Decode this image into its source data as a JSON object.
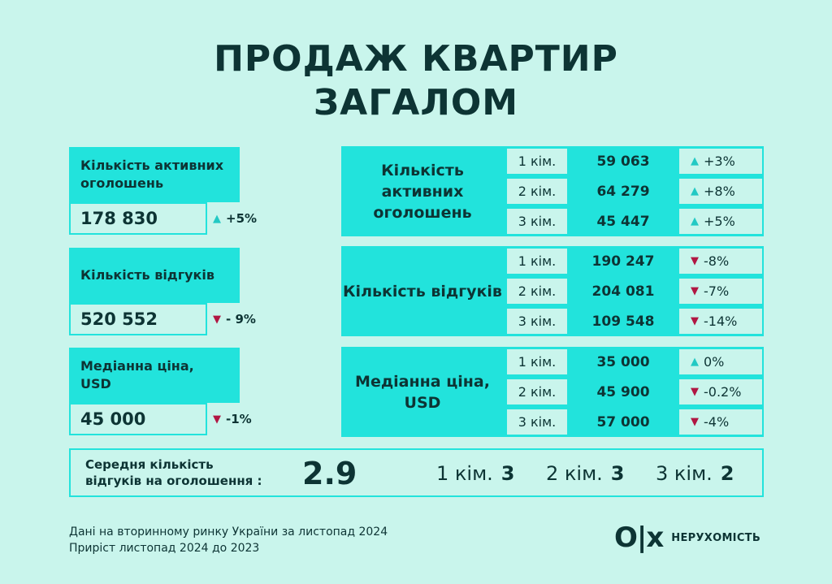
{
  "title": {
    "line1": "ПРОДАЖ КВАРТИР",
    "line2": "ЗАГАЛОМ"
  },
  "left": [
    {
      "label": "Кількість активних оголошень",
      "value": "178 830",
      "change": "+5%",
      "dir": "up"
    },
    {
      "label": "Кількість відгуків",
      "value": "520 552",
      "change": "- 9%",
      "dir": "down"
    },
    {
      "label": "Медіанна ціна, USD",
      "value": "45 000",
      "change": "-1%",
      "dir": "down"
    }
  ],
  "right": [
    {
      "label": "Кількість активних оголошень",
      "rows": [
        {
          "room": "1 кім.",
          "value": "59 063",
          "change": "+3%",
          "dir": "up"
        },
        {
          "room": "2 кім.",
          "value": "64 279",
          "change": "+8%",
          "dir": "up"
        },
        {
          "room": "3 кім.",
          "value": "45 447",
          "change": "+5%",
          "dir": "up"
        }
      ]
    },
    {
      "label": "Кількість відгуків",
      "rows": [
        {
          "room": "1 кім.",
          "value": "190 247",
          "change": "-8%",
          "dir": "down"
        },
        {
          "room": "2 кім.",
          "value": "204 081",
          "change": "-7%",
          "dir": "down"
        },
        {
          "room": "3 кім.",
          "value": "109 548",
          "change": "-14%",
          "dir": "down"
        }
      ]
    },
    {
      "label": "Медіанна ціна, USD",
      "rows": [
        {
          "room": "1 кім.",
          "value": "35 000",
          "change": "0%",
          "dir": "up"
        },
        {
          "room": "2 кім.",
          "value": "45 900",
          "change": "-0.2%",
          "dir": "down"
        },
        {
          "room": "3 кім.",
          "value": "57 000",
          "change": "-4%",
          "dir": "down"
        }
      ]
    }
  ],
  "average": {
    "label_line1": "Середня кількість",
    "label_line2": "відгуків на оголошення :",
    "value": "2.9",
    "rooms": [
      {
        "room": "1 кім.",
        "value": "3"
      },
      {
        "room": "2 кім.",
        "value": "3"
      },
      {
        "room": "3 кім.",
        "value": "2"
      }
    ]
  },
  "note": {
    "line1": "Дані на вторинному ринку України за листопад 2024",
    "line2": "Приріст листопад 2024 до 2023"
  },
  "logo": {
    "mark": "OLX",
    "text": "НЕРУХОМІСТЬ"
  },
  "icons": {
    "up": "triangle-up-icon",
    "down": "triangle-down-icon"
  },
  "colors": {
    "accent": "#22e3dc",
    "background": "#c9f5ec",
    "up": "#22c9c4",
    "down": "#b01743",
    "text": "#0d3434"
  }
}
